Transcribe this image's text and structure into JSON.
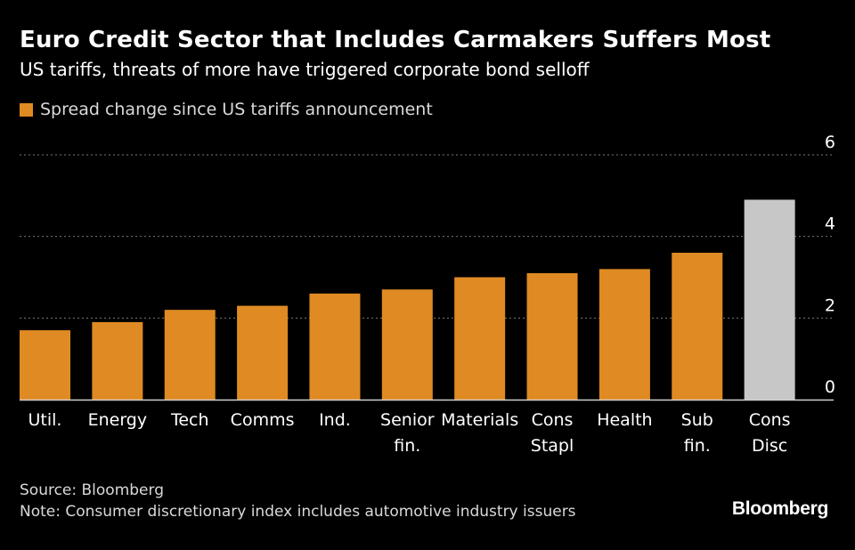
{
  "header": {
    "title": "Euro Credit Sector that Includes Carmakers Suffers Most",
    "subtitle": "US tariffs, threats of more have triggered corporate bond selloff"
  },
  "legend": {
    "label": "Spread change since US tariffs announcement"
  },
  "colors": {
    "bar": "#df8a23",
    "highlight_bar": "#c7c7c7",
    "grid": "#7a7a7a",
    "axis": "#cfcfcf"
  },
  "chart_data": {
    "type": "bar",
    "title": "Euro Credit Sector that Includes Carmakers Suffers Most",
    "xlabel": "",
    "ylabel": "",
    "ylim": [
      0,
      6
    ],
    "yticks": [
      0,
      2,
      4,
      6
    ],
    "grid": true,
    "legend_position": "top-left",
    "categories": [
      [
        "Util."
      ],
      [
        "Energy"
      ],
      [
        "Tech"
      ],
      [
        "Comms"
      ],
      [
        "Ind."
      ],
      [
        "Senior",
        "fin."
      ],
      [
        "Materials"
      ],
      [
        "Cons",
        "Stapl"
      ],
      [
        "Health"
      ],
      [
        "Sub",
        "fin."
      ],
      [
        "Cons",
        "Disc"
      ]
    ],
    "series": [
      {
        "name": "Spread change since US tariffs announcement",
        "values": [
          1.7,
          1.9,
          2.2,
          2.3,
          2.6,
          2.7,
          3.0,
          3.1,
          3.2,
          3.6,
          4.9
        ]
      }
    ],
    "highlight_index": 10
  },
  "footer": {
    "source": "Source: Bloomberg",
    "note": "Note: Consumer discretionary index includes automotive industry issuers",
    "brand": "Bloomberg"
  }
}
